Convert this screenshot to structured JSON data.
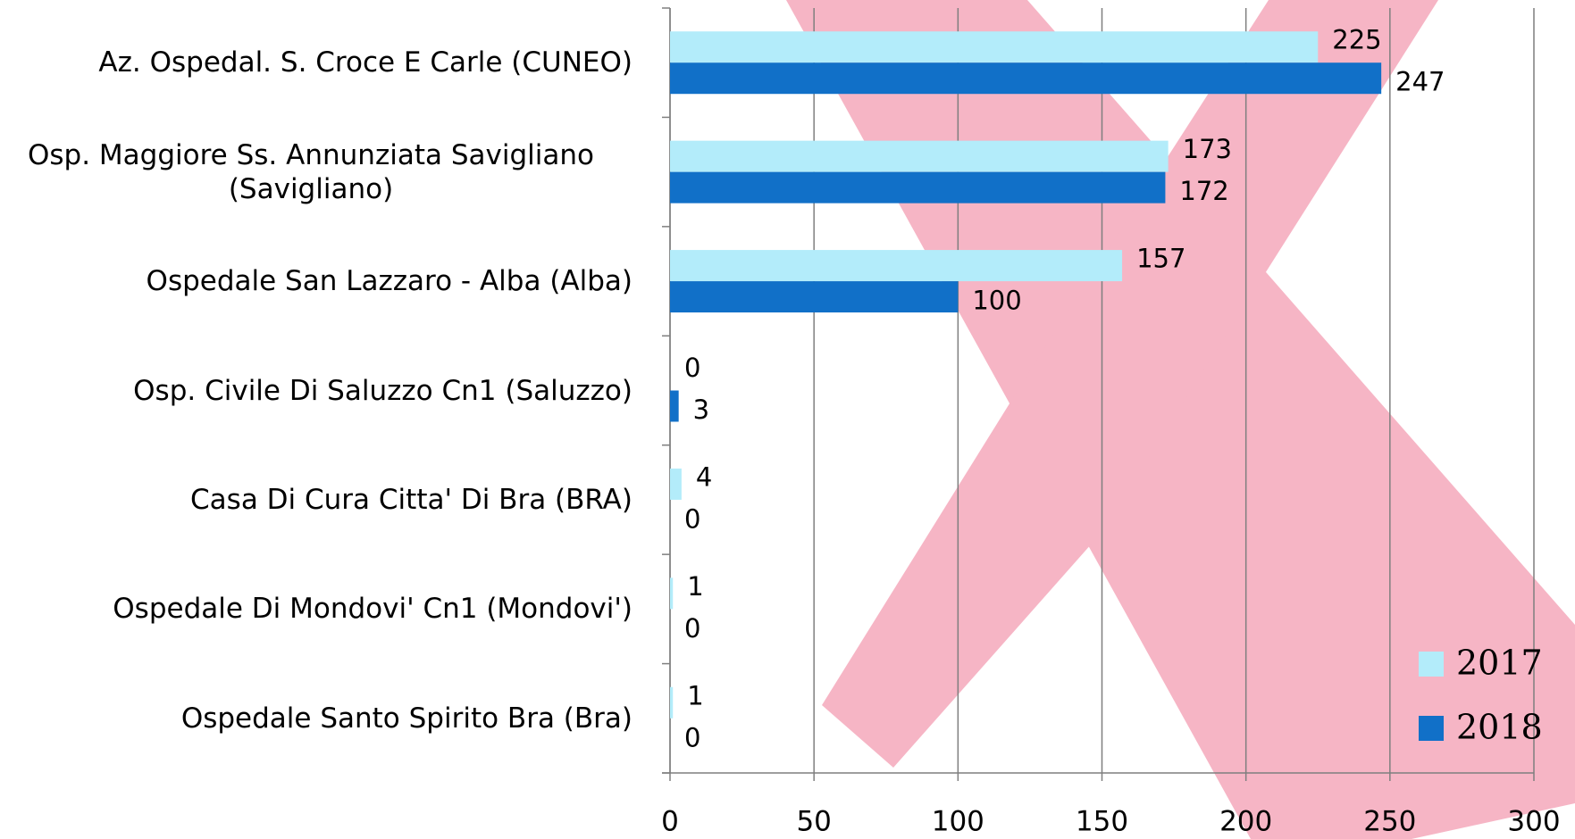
{
  "chart_data": {
    "type": "bar",
    "orientation": "horizontal",
    "categories": [
      "Az. Ospedal. S. Croce E Carle (CUNEO)",
      "Osp. Maggiore Ss. Annunziata Savigliano (Savigliano)",
      "Ospedale San Lazzaro - Alba (Alba)",
      "Osp. Civile Di Saluzzo Cn1 (Saluzzo)",
      "Casa Di Cura Citta' Di Bra (BRA)",
      "Ospedale Di Mondovi' Cn1 (Mondovi')",
      "Ospedale Santo Spirito Bra (Bra)"
    ],
    "series": [
      {
        "name": "2017",
        "color": "#b3ecfa",
        "values": [
          225,
          173,
          157,
          0,
          4,
          1,
          1
        ]
      },
      {
        "name": "2018",
        "color": "#1170c8",
        "values": [
          247,
          172,
          100,
          3,
          0,
          0,
          0
        ]
      }
    ],
    "xlim": [
      0,
      300
    ],
    "xticks": [
      0,
      50,
      100,
      150,
      200,
      250,
      300
    ],
    "grid": true,
    "legend": "lower right"
  }
}
